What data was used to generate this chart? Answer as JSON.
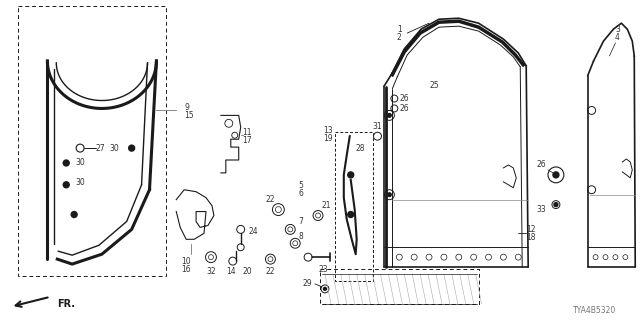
{
  "diagram_code": "TYA4B5320",
  "bg_color": "#ffffff",
  "line_color": "#1a1a1a",
  "label_color": "#333333",
  "gray_color": "#888888",
  "label_fontsize": 5.5
}
